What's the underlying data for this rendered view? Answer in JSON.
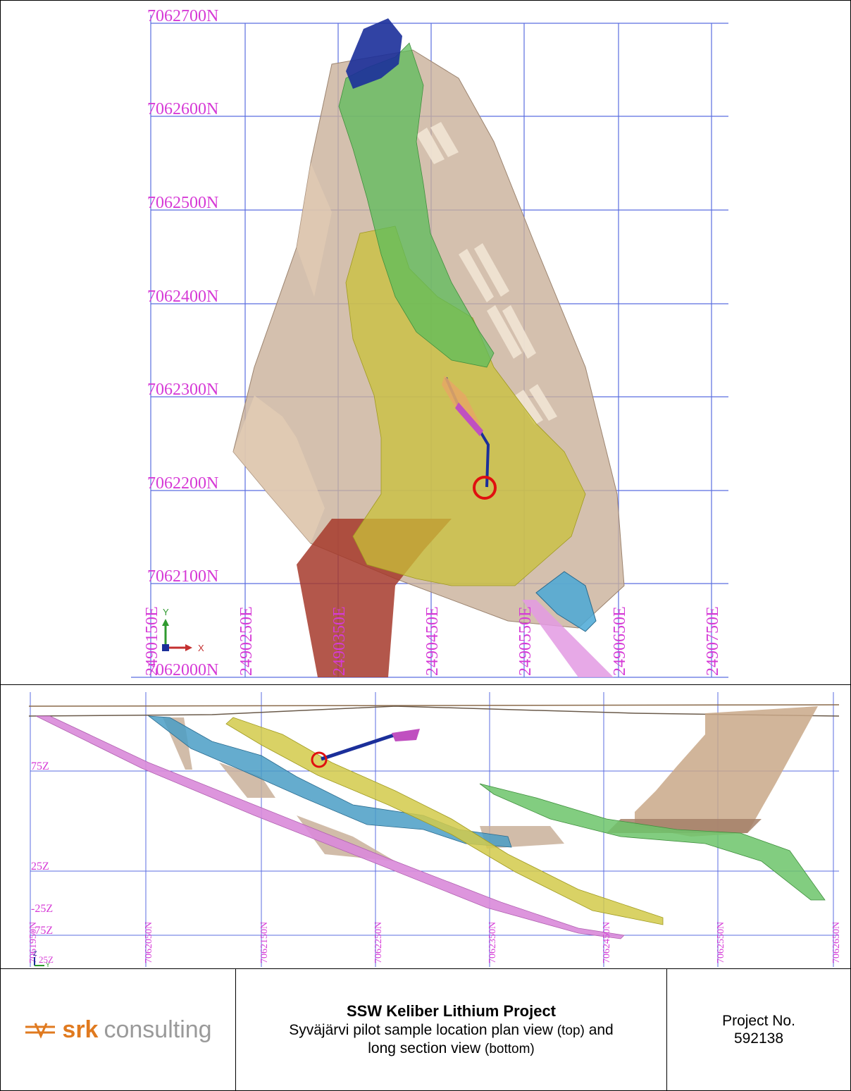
{
  "plan_view": {
    "northing_labels": [
      "7062700N",
      "7062600N",
      "7062500N",
      "7062400N",
      "7062300N",
      "7062200N",
      "7062100N",
      "7062000N"
    ],
    "easting_labels": [
      "2490150E",
      "2490250E",
      "2490350E",
      "2490450E",
      "2490550E",
      "2490650E",
      "2490750E"
    ],
    "axis_y": "Y",
    "axis_x": "X"
  },
  "section_view": {
    "elevation_labels": [
      "75Z",
      "25Z",
      "-25Z",
      "-75Z"
    ],
    "northing_labels": [
      "7061950N",
      "7062050N",
      "7062150N",
      "7062250N",
      "7062350N",
      "7062450N",
      "7062550N",
      "7062650N"
    ],
    "axis_z": "Z",
    "axis_y": "Y",
    "corner_label": "25Z"
  },
  "footer": {
    "logo_brand": "srk",
    "logo_word": "consulting",
    "title": "SSW Keliber Lithium Project",
    "subtitle_part1": "Syväjärvi pilot sample location plan view",
    "subtitle_top": "(top)",
    "subtitle_and": "and",
    "subtitle_part2": "long section view",
    "subtitle_bottom": "(bottom)",
    "project_label": "Project No.",
    "project_number": "592138"
  },
  "colors": {
    "grid": "#5b6ee0",
    "label": "#d63ad6",
    "pit": "#c9b09a",
    "green": "#5cbc5a",
    "yellow": "#c9c23a",
    "blue": "#1b2f9a",
    "cyan": "#4aa8d6",
    "magenta": "#d98ad9",
    "red": "#a63a2c",
    "marker": "#e01010",
    "logo_orange": "#e07a1f"
  }
}
